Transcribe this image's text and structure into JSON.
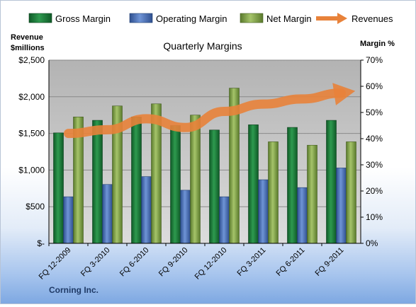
{
  "chart_data": {
    "type": "bar",
    "title": "Quarterly Margins",
    "company": "Corning Inc.",
    "ylabel_left": [
      "Revenue",
      "$millions"
    ],
    "ylabel_right": "Margin %",
    "left_ticks": [
      "$-",
      "$500",
      "$1,000",
      "$1,500",
      "$2,000",
      "$2,500"
    ],
    "right_ticks": [
      "0%",
      "10%",
      "20%",
      "30%",
      "40%",
      "50%",
      "60%",
      "70%"
    ],
    "ylim_left": [
      0,
      2500
    ],
    "ylim_right": [
      0,
      70
    ],
    "categories": [
      "FQ 12-2009",
      "FQ 3-2010",
      "FQ 6-2010",
      "FQ 9-2010",
      "FQ 12-2010",
      "FQ 3-2011",
      "FQ 6-2011",
      "FQ 9-2011"
    ],
    "series": [
      {
        "name": "Gross Margin",
        "axis": "right",
        "values": [
          42.2,
          47.0,
          48.3,
          45.0,
          43.3,
          45.3,
          44.3,
          47.0
        ],
        "color": "#1e7a3a"
      },
      {
        "name": "Operating Margin",
        "axis": "right",
        "values": [
          17.8,
          22.5,
          25.5,
          20.3,
          17.8,
          24.3,
          21.3,
          28.8
        ],
        "color": "#4a6fb5"
      },
      {
        "name": "Net Margin",
        "axis": "right",
        "values": [
          48.3,
          52.5,
          53.3,
          49.0,
          59.3,
          38.8,
          37.5,
          38.8
        ],
        "color": "#7fa046"
      },
      {
        "name": "Revenues",
        "type": "line",
        "axis": "left",
        "values": [
          1500,
          1550,
          1700,
          1580,
          1800,
          1900,
          1970,
          2050
        ],
        "color": "#e8823a"
      }
    ],
    "legend_position": "top",
    "grid": true
  }
}
